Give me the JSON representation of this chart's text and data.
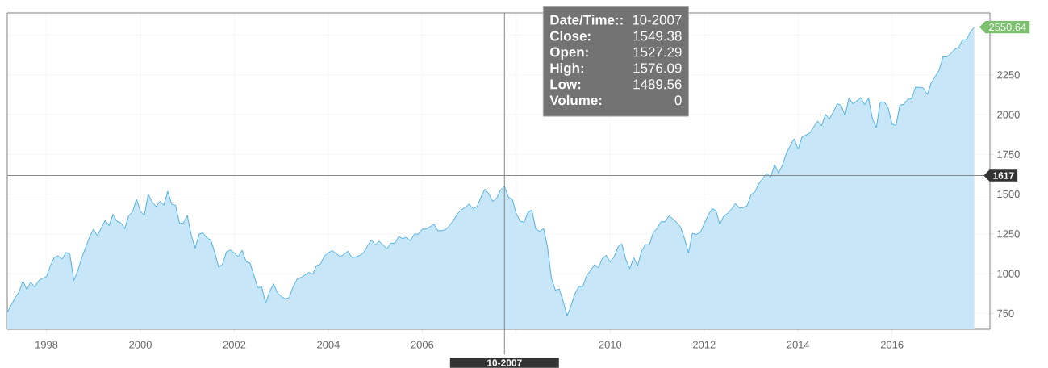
{
  "chart_data": {
    "type": "area",
    "color": "#1e9be0",
    "x": [
      "1997-03",
      "1997-04",
      "1997-05",
      "1997-06",
      "1997-07",
      "1997-08",
      "1997-09",
      "1997-10",
      "1997-11",
      "1997-12",
      "1998-01",
      "1998-02",
      "1998-03",
      "1998-04",
      "1998-05",
      "1998-06",
      "1998-07",
      "1998-08",
      "1998-09",
      "1998-10",
      "1998-11",
      "1998-12",
      "1999-01",
      "1999-02",
      "1999-03",
      "1999-04",
      "1999-05",
      "1999-06",
      "1999-07",
      "1999-08",
      "1999-09",
      "1999-10",
      "1999-11",
      "1999-12",
      "2000-01",
      "2000-02",
      "2000-03",
      "2000-04",
      "2000-05",
      "2000-06",
      "2000-07",
      "2000-08",
      "2000-09",
      "2000-10",
      "2000-11",
      "2000-12",
      "2001-01",
      "2001-02",
      "2001-03",
      "2001-04",
      "2001-05",
      "2001-06",
      "2001-07",
      "2001-08",
      "2001-09",
      "2001-10",
      "2001-11",
      "2001-12",
      "2002-01",
      "2002-02",
      "2002-03",
      "2002-04",
      "2002-05",
      "2002-06",
      "2002-07",
      "2002-08",
      "2002-09",
      "2002-10",
      "2002-11",
      "2002-12",
      "2003-01",
      "2003-02",
      "2003-03",
      "2003-04",
      "2003-05",
      "2003-06",
      "2003-07",
      "2003-08",
      "2003-09",
      "2003-10",
      "2003-11",
      "2003-12",
      "2004-01",
      "2004-02",
      "2004-03",
      "2004-04",
      "2004-05",
      "2004-06",
      "2004-07",
      "2004-08",
      "2004-09",
      "2004-10",
      "2004-11",
      "2004-12",
      "2005-01",
      "2005-02",
      "2005-03",
      "2005-04",
      "2005-05",
      "2005-06",
      "2005-07",
      "2005-08",
      "2005-09",
      "2005-10",
      "2005-11",
      "2005-12",
      "2006-01",
      "2006-02",
      "2006-03",
      "2006-04",
      "2006-05",
      "2006-06",
      "2006-07",
      "2006-08",
      "2006-09",
      "2006-10",
      "2006-11",
      "2006-12",
      "2007-01",
      "2007-02",
      "2007-03",
      "2007-04",
      "2007-05",
      "2007-06",
      "2007-07",
      "2007-08",
      "2007-09",
      "2007-10",
      "2007-11",
      "2007-12",
      "2008-01",
      "2008-02",
      "2008-03",
      "2008-04",
      "2008-05",
      "2008-06",
      "2008-07",
      "2008-08",
      "2008-09",
      "2008-10",
      "2008-11",
      "2008-12",
      "2009-01",
      "2009-02",
      "2009-03",
      "2009-04",
      "2009-05",
      "2009-06",
      "2009-07",
      "2009-08",
      "2009-09",
      "2009-10",
      "2009-11",
      "2009-12",
      "2010-01",
      "2010-02",
      "2010-03",
      "2010-04",
      "2010-05",
      "2010-06",
      "2010-07",
      "2010-08",
      "2010-09",
      "2010-10",
      "2010-11",
      "2010-12",
      "2011-01",
      "2011-02",
      "2011-03",
      "2011-04",
      "2011-05",
      "2011-06",
      "2011-07",
      "2011-08",
      "2011-09",
      "2011-10",
      "2011-11",
      "2011-12",
      "2012-01",
      "2012-02",
      "2012-03",
      "2012-04",
      "2012-05",
      "2012-06",
      "2012-07",
      "2012-08",
      "2012-09",
      "2012-10",
      "2012-11",
      "2012-12",
      "2013-01",
      "2013-02",
      "2013-03",
      "2013-04",
      "2013-05",
      "2013-06",
      "2013-07",
      "2013-08",
      "2013-09",
      "2013-10",
      "2013-11",
      "2013-12",
      "2014-01",
      "2014-02",
      "2014-03",
      "2014-04",
      "2014-05",
      "2014-06",
      "2014-07",
      "2014-08",
      "2014-09",
      "2014-10",
      "2014-11",
      "2014-12",
      "2015-01",
      "2015-02",
      "2015-03",
      "2015-04",
      "2015-05",
      "2015-06",
      "2015-07",
      "2015-08",
      "2015-09",
      "2015-10",
      "2015-11",
      "2015-12",
      "2016-01",
      "2016-02",
      "2016-03",
      "2016-04",
      "2016-05",
      "2016-06",
      "2016-07",
      "2016-08",
      "2016-09",
      "2016-10",
      "2016-11",
      "2016-12",
      "2017-01",
      "2017-02",
      "2017-03",
      "2017-04",
      "2017-05",
      "2017-06",
      "2017-07",
      "2017-08",
      "2017-09",
      "2017-10"
    ],
    "values": [
      757,
      801,
      848,
      885,
      954,
      899,
      947,
      915,
      955,
      970,
      980,
      1049,
      1102,
      1112,
      1091,
      1134,
      1121,
      957,
      1017,
      1099,
      1164,
      1229,
      1280,
      1238,
      1286,
      1335,
      1302,
      1373,
      1329,
      1320,
      1283,
      1363,
      1389,
      1469,
      1394,
      1366,
      1499,
      1452,
      1421,
      1455,
      1431,
      1518,
      1437,
      1429,
      1315,
      1320,
      1366,
      1240,
      1160,
      1249,
      1256,
      1224,
      1211,
      1134,
      1041,
      1060,
      1139,
      1148,
      1130,
      1107,
      1147,
      1076,
      1067,
      990,
      912,
      916,
      815,
      886,
      936,
      880,
      856,
      841,
      848,
      917,
      964,
      975,
      990,
      1008,
      996,
      1051,
      1058,
      1112,
      1131,
      1145,
      1126,
      1107,
      1121,
      1141,
      1102,
      1104,
      1114,
      1130,
      1174,
      1212,
      1181,
      1204,
      1181,
      1157,
      1192,
      1191,
      1234,
      1220,
      1229,
      1207,
      1249,
      1248,
      1280,
      1281,
      1295,
      1311,
      1270,
      1270,
      1277,
      1304,
      1336,
      1378,
      1401,
      1418,
      1438,
      1407,
      1421,
      1482,
      1531,
      1503,
      1455,
      1474,
      1527,
      1549,
      1481,
      1468,
      1379,
      1331,
      1323,
      1386,
      1400,
      1280,
      1267,
      1283,
      1166,
      969,
      896,
      903,
      826,
      735,
      798,
      873,
      919,
      919,
      987,
      1021,
      1057,
      1036,
      1096,
      1115,
      1074,
      1104,
      1169,
      1187,
      1089,
      1031,
      1102,
      1049,
      1141,
      1183,
      1181,
      1258,
      1286,
      1327,
      1326,
      1364,
      1345,
      1321,
      1292,
      1219,
      1131,
      1253,
      1247,
      1258,
      1312,
      1366,
      1408,
      1398,
      1310,
      1362,
      1379,
      1407,
      1441,
      1412,
      1416,
      1426,
      1498,
      1515,
      1569,
      1598,
      1631,
      1606,
      1686,
      1633,
      1682,
      1757,
      1806,
      1848,
      1783,
      1859,
      1872,
      1884,
      1924,
      1960,
      1931,
      2003,
      1972,
      2018,
      2068,
      2059,
      1995,
      2105,
      2068,
      2086,
      2107,
      2063,
      2104,
      1972,
      1920,
      2079,
      2080,
      2044,
      1940,
      1932,
      2060,
      2065,
      2097,
      2099,
      2174,
      2171,
      2168,
      2126,
      2199,
      2239,
      2279,
      2364,
      2363,
      2384,
      2412,
      2423,
      2470,
      2472,
      2519,
      2550.64
    ],
    "xlim": [
      "1997-03",
      "2018-02"
    ],
    "xticks": [
      "1998",
      "2000",
      "2002",
      "2004",
      "2006",
      {
        "value": "2008",
        "label": null
      },
      "2010",
      "2012",
      "2014",
      "2016"
    ],
    "ylim": [
      650,
      2640
    ],
    "yticks": [
      750,
      1000,
      1250,
      1500,
      1750,
      2000,
      2250,
      {
        "value": 2500,
        "label": null
      }
    ],
    "grid": true,
    "ref_lines": [
      {
        "axis": "x",
        "value": "2007-10",
        "label": "10-2007",
        "color": "#888888"
      },
      {
        "axis": "y",
        "value": 1617,
        "label": "1617",
        "color": "#888888"
      }
    ],
    "annotations": [
      "Date/Time::",
      "10-2007",
      "Close:",
      "1549.38",
      "Open:",
      "1527.29",
      "High:",
      "1576.09",
      "Low:",
      "1489.56",
      "Volume:",
      "0",
      {
        "text": "2550.64",
        "x": "2017-10",
        "y": 2550.64
      }
    ]
  }
}
